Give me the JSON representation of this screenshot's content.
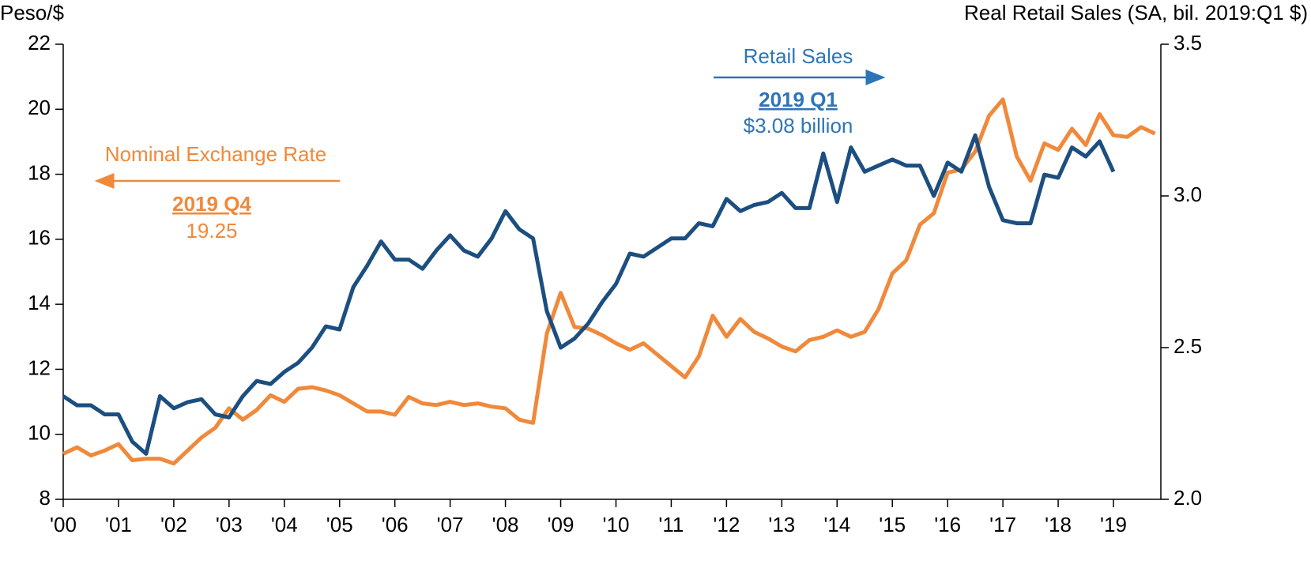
{
  "chart_data": {
    "type": "line",
    "ylabel": "Peso/$",
    "y2label": "Real Retail Sales (SA, bil. 2019:Q1 $)",
    "categories": [
      "'00",
      null,
      null,
      null,
      "'01",
      null,
      null,
      null,
      "'02",
      null,
      null,
      null,
      "'03",
      null,
      null,
      null,
      "'04",
      null,
      null,
      null,
      "'05",
      null,
      null,
      null,
      "'06",
      null,
      null,
      null,
      "'07",
      null,
      null,
      null,
      "'08",
      null,
      null,
      null,
      "'09",
      null,
      null,
      null,
      "'10",
      null,
      null,
      null,
      "'11",
      null,
      null,
      null,
      "'12",
      null,
      null,
      null,
      "'13",
      null,
      null,
      null,
      "'14",
      null,
      null,
      null,
      "'15",
      null,
      null,
      null,
      "'16",
      null,
      null,
      null,
      "'17",
      null,
      null,
      null,
      "'18",
      null,
      null,
      null,
      "'19",
      null,
      null,
      null
    ],
    "series": [
      {
        "name": "Nominal Exchange Rate",
        "color": "#f0893b",
        "axis": "y",
        "values": [
          9.4,
          9.6,
          9.35,
          9.5,
          9.7,
          9.2,
          9.25,
          9.25,
          9.1,
          9.5,
          9.9,
          10.2,
          10.8,
          10.45,
          10.75,
          11.2,
          11.0,
          11.4,
          11.45,
          11.35,
          11.2,
          10.95,
          10.7,
          10.7,
          10.6,
          11.15,
          10.95,
          10.9,
          11.0,
          10.9,
          10.95,
          10.85,
          10.8,
          10.45,
          10.35,
          13.1,
          14.35,
          13.3,
          13.25,
          13.05,
          12.8,
          12.6,
          12.8,
          12.45,
          12.1,
          11.75,
          12.4,
          13.65,
          13.0,
          13.55,
          13.15,
          12.95,
          12.7,
          12.55,
          12.9,
          13.0,
          13.2,
          13.0,
          13.15,
          13.85,
          14.95,
          15.35,
          16.45,
          16.8,
          18.05,
          18.15,
          18.7,
          19.8,
          20.3,
          18.55,
          17.8,
          18.95,
          18.75,
          19.4,
          18.9,
          19.85,
          19.2,
          19.15,
          19.45,
          19.25
        ]
      },
      {
        "name": "Retail Sales",
        "color": "#1c4e80",
        "axis": "y2",
        "values": [
          2.34,
          2.31,
          2.31,
          2.28,
          2.28,
          2.19,
          2.15,
          2.34,
          2.3,
          2.32,
          2.33,
          2.28,
          2.27,
          2.34,
          2.39,
          2.38,
          2.42,
          2.45,
          2.5,
          2.57,
          2.56,
          2.7,
          2.77,
          2.85,
          2.79,
          2.79,
          2.76,
          2.82,
          2.87,
          2.82,
          2.8,
          2.86,
          2.95,
          2.89,
          2.86,
          2.62,
          2.5,
          2.53,
          2.58,
          2.65,
          2.71,
          2.81,
          2.8,
          2.83,
          2.86,
          2.86,
          2.91,
          2.9,
          2.99,
          2.95,
          2.97,
          2.98,
          3.01,
          2.96,
          2.96,
          3.14,
          2.98,
          3.16,
          3.08,
          3.1,
          3.12,
          3.1,
          3.1,
          3.0,
          3.11,
          3.08,
          3.2,
          3.03,
          2.92,
          2.91,
          2.91,
          3.07,
          3.06,
          3.16,
          3.13,
          3.18,
          3.08,
          null,
          null,
          null
        ]
      }
    ],
    "ylim": [
      8,
      22
    ],
    "yticks": [
      8,
      10,
      12,
      14,
      16,
      18,
      20,
      22
    ],
    "y2lim": [
      2.0,
      3.5
    ],
    "y2ticks": [
      {
        "value": 2.0,
        "label": "2.0"
      },
      2.5,
      {
        "value": 3.0,
        "label": "3.0"
      },
      3.5
    ],
    "grid": false,
    "annotations": [
      "2019 Q1",
      "$3.08 billion",
      "2019 Q4",
      "19.25"
    ]
  }
}
